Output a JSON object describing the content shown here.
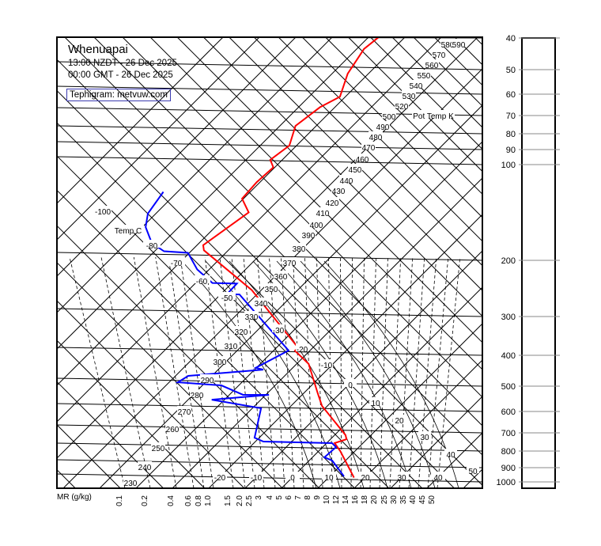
{
  "header": {
    "station": "Whenuapai",
    "local_time": "13:00 NZDT - 26 Dec 2025",
    "gmt_time": "00:00 GMT - 26 Dec 2025",
    "credit": "Tephigram: metvuw.com"
  },
  "chart_data": {
    "type": "line",
    "diagram": "tephigram",
    "title": "Whenuapai",
    "colors": {
      "temperature": "#ff0000",
      "dewpoint": "#0000ff",
      "grid": "#000000"
    },
    "pressure_axis": {
      "ticks": [
        40,
        50,
        60,
        70,
        80,
        90,
        100,
        200,
        300,
        400,
        500,
        600,
        700,
        800,
        900,
        1000
      ],
      "unit": "hPa",
      "scale": "log"
    },
    "isotherm_label": "Temp C",
    "isotherm_labels_upper": [
      "-100",
      "-80",
      "-70",
      "-60",
      "-50"
    ],
    "isotherm_labels_mid": [
      "-30",
      "-20",
      "-10",
      "0",
      "10",
      "20",
      "30",
      "40",
      "50"
    ],
    "isotherm_labels_bottom": [
      "-20",
      "-10",
      "0",
      "10",
      "20",
      "30",
      "40"
    ],
    "pot_temp_label": "Pot Temp K",
    "pot_temp_labels": [
      "230",
      "240",
      "250",
      "260",
      "270",
      "280",
      "290",
      "300",
      "310",
      "320",
      "330",
      "340",
      "350",
      "360",
      "370",
      "380",
      "390",
      "400",
      "410",
      "420",
      "430",
      "440",
      "450",
      "460",
      "470",
      "480",
      "490",
      "500",
      "520",
      "530",
      "540",
      "550",
      "560",
      "570",
      "580",
      "590"
    ],
    "mixing_ratio_label": "MR (g/kg)",
    "mixing_ratio_labels": [
      "0.1",
      "0.2",
      "0.4",
      "0.6",
      "0.8",
      "1.0",
      "1.5",
      "2.0",
      "2.5",
      "3",
      "4",
      "5",
      "6",
      "7",
      "8",
      "9",
      "10",
      "12",
      "14",
      "16",
      "18",
      "20",
      "25",
      "30",
      "35",
      "40",
      "45",
      "50"
    ],
    "series": [
      {
        "key": "temperature",
        "points": [
          {
            "p": 968,
            "t": 17.0
          },
          {
            "p": 808,
            "t": 5.9
          },
          {
            "p": 765,
            "t": 2.2
          },
          {
            "p": 745,
            "t": 4.4
          },
          {
            "p": 724,
            "t": 3.0
          },
          {
            "p": 588,
            "t": -11.5
          },
          {
            "p": 537,
            "t": -16.1
          },
          {
            "p": 432,
            "t": -26.7
          },
          {
            "p": 389,
            "t": -34.1
          },
          {
            "p": 382,
            "t": -33.9
          },
          {
            "p": 235,
            "t": -62.6
          },
          {
            "p": 158,
            "t": -86.7
          },
          {
            "p": 151,
            "t": -88.3
          },
          {
            "p": 123,
            "t": -84.8
          },
          {
            "p": 108,
            "t": -90.4
          },
          {
            "p": 96,
            "t": -90.9
          },
          {
            "p": 87,
            "t": -90.4
          },
          {
            "p": 81,
            "t": -93.3
          },
          {
            "p": 74,
            "t": -92.0
          },
          {
            "p": 63,
            "t": -95.7
          },
          {
            "p": 56,
            "t": -94.1
          },
          {
            "p": 53,
            "t": -91.5
          },
          {
            "p": 43.9,
            "t": -95.7
          },
          {
            "p": 36.4,
            "t": -98.0
          },
          {
            "p": 33.7,
            "t": -97.2
          }
        ]
      },
      {
        "key": "dewpoint",
        "points": [
          {
            "p": 961,
            "t": 13.9
          },
          {
            "p": 863,
            "t": 6.3
          },
          {
            "p": 844,
            "t": 3.3
          },
          {
            "p": 787,
            "t": 3.7
          },
          {
            "p": 765,
            "t": 1.5
          },
          {
            "p": 748,
            "t": -17.8
          },
          {
            "p": 725,
            "t": -21.3
          },
          {
            "p": 586,
            "t": -27.6
          },
          {
            "p": 534,
            "t": -43.5
          },
          {
            "p": 533,
            "t": -29.1
          },
          {
            "p": 525,
            "t": -36.3
          },
          {
            "p": 482,
            "t": -44.8
          },
          {
            "p": 453,
            "t": -57.6
          },
          {
            "p": 435,
            "t": -56.5
          },
          {
            "p": 440,
            "t": -37.6
          },
          {
            "p": 432,
            "t": -40.2
          },
          {
            "p": 387,
            "t": -35.9
          },
          {
            "p": 240,
            "t": -64.8
          },
          {
            "p": 236,
            "t": -68.3
          },
          {
            "p": 219,
            "t": -68.5
          },
          {
            "p": 211,
            "t": -75.4
          },
          {
            "p": 184,
            "t": -83.3
          },
          {
            "p": 157,
            "t": -90.4
          },
          {
            "p": 148,
            "t": -97.4
          },
          {
            "p": 134,
            "t": -103.0
          },
          {
            "p": 114,
            "t": -109.1
          },
          {
            "p": 101,
            "t": -112.2
          },
          {
            "p": 85.6,
            "t": -113.9
          }
        ]
      }
    ]
  }
}
